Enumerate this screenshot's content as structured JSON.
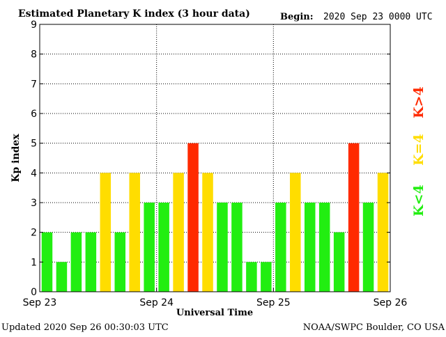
{
  "header": {
    "title": "Estimated Planetary K index (3 hour data)",
    "begin_label": "Begin:",
    "begin_value": "2020 Sep 23 0000 UTC"
  },
  "footer": {
    "updated": "Updated 2020 Sep 26 00:30:03 UTC",
    "source": "NOAA/SWPC Boulder, CO USA"
  },
  "legend": [
    {
      "label": "K<4",
      "color": "#22ee11"
    },
    {
      "label": "K=4",
      "color": "#ffdd00"
    },
    {
      "label": "K>4",
      "color": "#ff2a00"
    }
  ],
  "chart_data": {
    "type": "bar",
    "title": "Estimated Planetary K index (3 hour data)",
    "xlabel": "Universal Time",
    "ylabel": "Kp index",
    "ylim": [
      0,
      9
    ],
    "yticks": [
      0,
      1,
      2,
      3,
      4,
      5,
      6,
      7,
      8,
      9
    ],
    "xlim_days": [
      0,
      3
    ],
    "xticks": [
      {
        "day": 0,
        "label": "Sep 23"
      },
      {
        "day": 1,
        "label": "Sep 24"
      },
      {
        "day": 2,
        "label": "Sep 25"
      },
      {
        "day": 3,
        "label": "Sep 26"
      }
    ],
    "bars_per_day": 8,
    "values": [
      2,
      1,
      2,
      2,
      4,
      2,
      4,
      3,
      3,
      4,
      5,
      4,
      3,
      3,
      1,
      1,
      3,
      4,
      3,
      3,
      2,
      5,
      3,
      4
    ],
    "grid": true,
    "colors": {
      "low": "#22ee11",
      "equal": "#ffdd00",
      "high": "#ff2a00"
    }
  }
}
